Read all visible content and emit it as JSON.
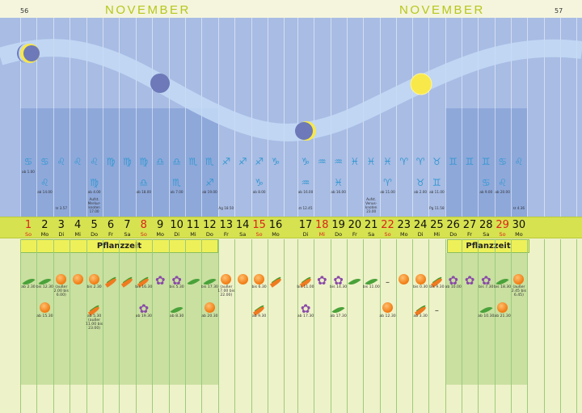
{
  "header": {
    "left_page": "56",
    "right_page": "57",
    "left_month": "NOVEMBER",
    "right_month": "NOVEMBER"
  },
  "planting_label": "Pflanzzeit",
  "colors": {
    "sunday": "#d9261c",
    "zodiac": "#3798d2",
    "sky": "#a8bce4",
    "dayrow": "#d6e250",
    "plant_highlight": "#c9e0a0"
  },
  "moon_phases": [
    {
      "day": 1,
      "phase": "first-quarter"
    },
    {
      "day": 9,
      "phase": "new-moon"
    },
    {
      "day": 17,
      "phase": "last-quarter"
    },
    {
      "day": 24,
      "phase": "full-moon"
    }
  ],
  "planting_days": [
    1,
    2,
    3,
    4,
    5,
    6,
    7,
    8,
    9,
    10,
    11,
    12,
    26,
    27,
    28,
    29,
    30
  ],
  "days": [
    {
      "n": "1",
      "d": "So",
      "red": true,
      "z1": "♋",
      "z1t": "ab 1.00",
      "z2": "",
      "z2t": "",
      "note": "",
      "p1": "leaf",
      "p1t": "ab 2.30",
      "p2": "",
      "p2t": ""
    },
    {
      "n": "2",
      "d": "Mo",
      "z1": "♋",
      "z1t": "",
      "z2": "♌",
      "z2t": "ab 14.00",
      "note": "",
      "p1": "leaf",
      "p1t": "bis 12.30",
      "p2": "fruit",
      "p2t": "ab 15.30"
    },
    {
      "n": "3",
      "d": "Di",
      "z1": "♌",
      "z1t": "",
      "z2": "",
      "z2t": "",
      "note": "☋ 3.57",
      "p1": "fruit",
      "p1t": "(außer 2.00 bis 6.00)",
      "p2": "",
      "p2t": ""
    },
    {
      "n": "4",
      "d": "Mi",
      "z1": "♌",
      "z1t": "",
      "z2": "",
      "z2t": "",
      "note": "",
      "p1": "fruit",
      "p1t": "",
      "p2": "",
      "p2t": ""
    },
    {
      "n": "5",
      "d": "Do",
      "z1": "♌",
      "z1t": "",
      "z2": "♍",
      "z2t": "ab 4.00",
      "note": "Aufst. Merkur-knoten 17.00",
      "p1": "fruit",
      "p1t": "bis 2.30",
      "p2": "root",
      "p2t": "ab 5.30 (außer 11.00 bis 23.00)"
    },
    {
      "n": "6",
      "d": "Fr",
      "z1": "♍",
      "z1t": "",
      "z2": "",
      "z2t": "",
      "note": "",
      "p1": "root",
      "p1t": "",
      "p2": "",
      "p2t": ""
    },
    {
      "n": "7",
      "d": "Sa",
      "z1": "♍",
      "z1t": "",
      "z2": "",
      "z2t": "",
      "note": "",
      "p1": "root",
      "p1t": "",
      "p2": "",
      "p2t": ""
    },
    {
      "n": "8",
      "d": "So",
      "red": true,
      "z1": "♍",
      "z1t": "",
      "z2": "♎",
      "z2t": "ab 18.00",
      "note": "",
      "p1": "root",
      "p1t": "bis 16.30",
      "p2": "flower",
      "p2t": "ab 19.30"
    },
    {
      "n": "9",
      "d": "Mo",
      "z1": "♎",
      "z1t": "",
      "z2": "",
      "z2t": "",
      "note": "",
      "p1": "flower",
      "p1t": "",
      "p2": "",
      "p2t": ""
    },
    {
      "n": "10",
      "d": "Di",
      "z1": "♎",
      "z1t": "",
      "z2": "♏",
      "z2t": "ab 7.00",
      "note": "",
      "p1": "flower",
      "p1t": "bis 5.30",
      "p2": "leaf",
      "p2t": "ab 8.30"
    },
    {
      "n": "11",
      "d": "Mi",
      "z1": "♏",
      "z1t": "",
      "z2": "",
      "z2t": "",
      "note": "",
      "p1": "leaf",
      "p1t": "",
      "p2": "",
      "p2t": ""
    },
    {
      "n": "12",
      "d": "Do",
      "z1": "♏",
      "z1t": "",
      "z2": "♐",
      "z2t": "ab 19.00",
      "note": "",
      "p1": "leaf",
      "p1t": "bis 17.30",
      "p2": "fruit",
      "p2t": "ab 20.30"
    },
    {
      "n": "13",
      "d": "Fr",
      "z1": "♐",
      "z1t": "",
      "z2": "",
      "z2t": "",
      "note": "Ag 18.50",
      "p1": "fruit",
      "p1t": "(außer 17.00 bis 22.00)",
      "p2": "",
      "p2t": ""
    },
    {
      "n": "14",
      "d": "Sa",
      "z1": "♐",
      "z1t": "",
      "z2": "",
      "z2t": "",
      "note": "",
      "p1": "fruit",
      "p1t": "",
      "p2": "",
      "p2t": ""
    },
    {
      "n": "15",
      "d": "So",
      "red": true,
      "z1": "♐",
      "z1t": "",
      "z2": "♑",
      "z2t": "ab 8.00",
      "note": "",
      "p1": "fruit",
      "p1t": "bis 6.30",
      "p2": "root",
      "p2t": "ab 9.30"
    },
    {
      "n": "16",
      "d": "Mo",
      "z1": "♑",
      "z1t": "",
      "z2": "",
      "z2t": "",
      "note": "",
      "p1": "root",
      "p1t": "",
      "p2": "",
      "p2t": ""
    },
    {
      "n": "17",
      "d": "Di",
      "z1": "♑",
      "z1t": "",
      "z2": "♒",
      "z2t": "ab 16.00",
      "note": "☊ 12.45",
      "p1": "root",
      "p1t": "bis 11.00",
      "p2": "flower",
      "p2t": "ab 17.30"
    },
    {
      "n": "18",
      "d": "Mi",
      "red": true,
      "z1": "♒",
      "z1t": "",
      "z2": "",
      "z2t": "",
      "note": "",
      "p1": "flower",
      "p1t": "",
      "p2": "",
      "p2t": ""
    },
    {
      "n": "19",
      "d": "Do",
      "z1": "♒",
      "z1t": "",
      "z2": "♓",
      "z2t": "ab 16.00",
      "note": "",
      "p1": "flower",
      "p1t": "bis 14.30",
      "p2": "leaf",
      "p2t": "ab 17.30"
    },
    {
      "n": "20",
      "d": "Fr",
      "z1": "♓",
      "z1t": "",
      "z2": "",
      "z2t": "",
      "note": "",
      "p1": "leaf",
      "p1t": "",
      "p2": "",
      "p2t": ""
    },
    {
      "n": "21",
      "d": "Sa",
      "z1": "♓",
      "z1t": "",
      "z2": "",
      "z2t": "",
      "note": "Aufst. Venus-knoten 23.00",
      "p1": "leaf",
      "p1t": "bis 11.00",
      "p2": "",
      "p2t": ""
    },
    {
      "n": "22",
      "d": "So",
      "red": true,
      "z1": "♓",
      "z1t": "",
      "z2": "♈",
      "z2t": "ab 11.00",
      "note": "",
      "p1": "dash",
      "p1t": "",
      "p2": "fruit",
      "p2t": "ab 12.30"
    },
    {
      "n": "23",
      "d": "Mo",
      "z1": "♈",
      "z1t": "",
      "z2": "",
      "z2t": "",
      "note": "",
      "p1": "fruit",
      "p1t": "",
      "p2": "",
      "p2t": ""
    },
    {
      "n": "24",
      "d": "Di",
      "z1": "♈",
      "z1t": "",
      "z2": "♉",
      "z2t": "ab 2.00",
      "note": "",
      "p1": "fruit",
      "p1t": "bis 0.30",
      "p2": "root",
      "p2t": "ab 3.30"
    },
    {
      "n": "25",
      "d": "Mi",
      "z1": "♉",
      "z1t": "",
      "z2": "♊",
      "z2t": "ab 11.00",
      "note": "Pg 11.58",
      "p1": "root",
      "p1t": "bis 9.30",
      "p2": "dash",
      "p2t": ""
    },
    {
      "n": "26",
      "d": "Do",
      "z1": "♊",
      "z1t": "",
      "z2": "",
      "z2t": "",
      "note": "",
      "p1": "flower",
      "p1t": "ab 10.00",
      "p2": "",
      "p2t": ""
    },
    {
      "n": "27",
      "d": "Fr",
      "z1": "♊",
      "z1t": "",
      "z2": "",
      "z2t": "",
      "note": "",
      "p1": "flower",
      "p1t": "",
      "p2": "",
      "p2t": ""
    },
    {
      "n": "28",
      "d": "Sa",
      "z1": "♊",
      "z1t": "",
      "z2": "♋",
      "z2t": "ab 9.00",
      "note": "",
      "p1": "flower",
      "p1t": "bis 7.30",
      "p2": "leaf",
      "p2t": "ab 10.30"
    },
    {
      "n": "29",
      "d": "So",
      "red": true,
      "z1": "♋",
      "z1t": "",
      "z2": "♌",
      "z2t": "ab 20.00",
      "note": "",
      "p1": "leaf",
      "p1t": "bis 18.30",
      "p2": "fruit",
      "p2t": "ab 21.30"
    },
    {
      "n": "30",
      "d": "Mo",
      "z1": "♌",
      "z1t": "",
      "z2": "",
      "z2t": "",
      "note": "☋ 4.36",
      "p1": "fruit",
      "p1t": "(außer 2.45 bis 6.45)",
      "p2": "",
      "p2t": ""
    }
  ]
}
